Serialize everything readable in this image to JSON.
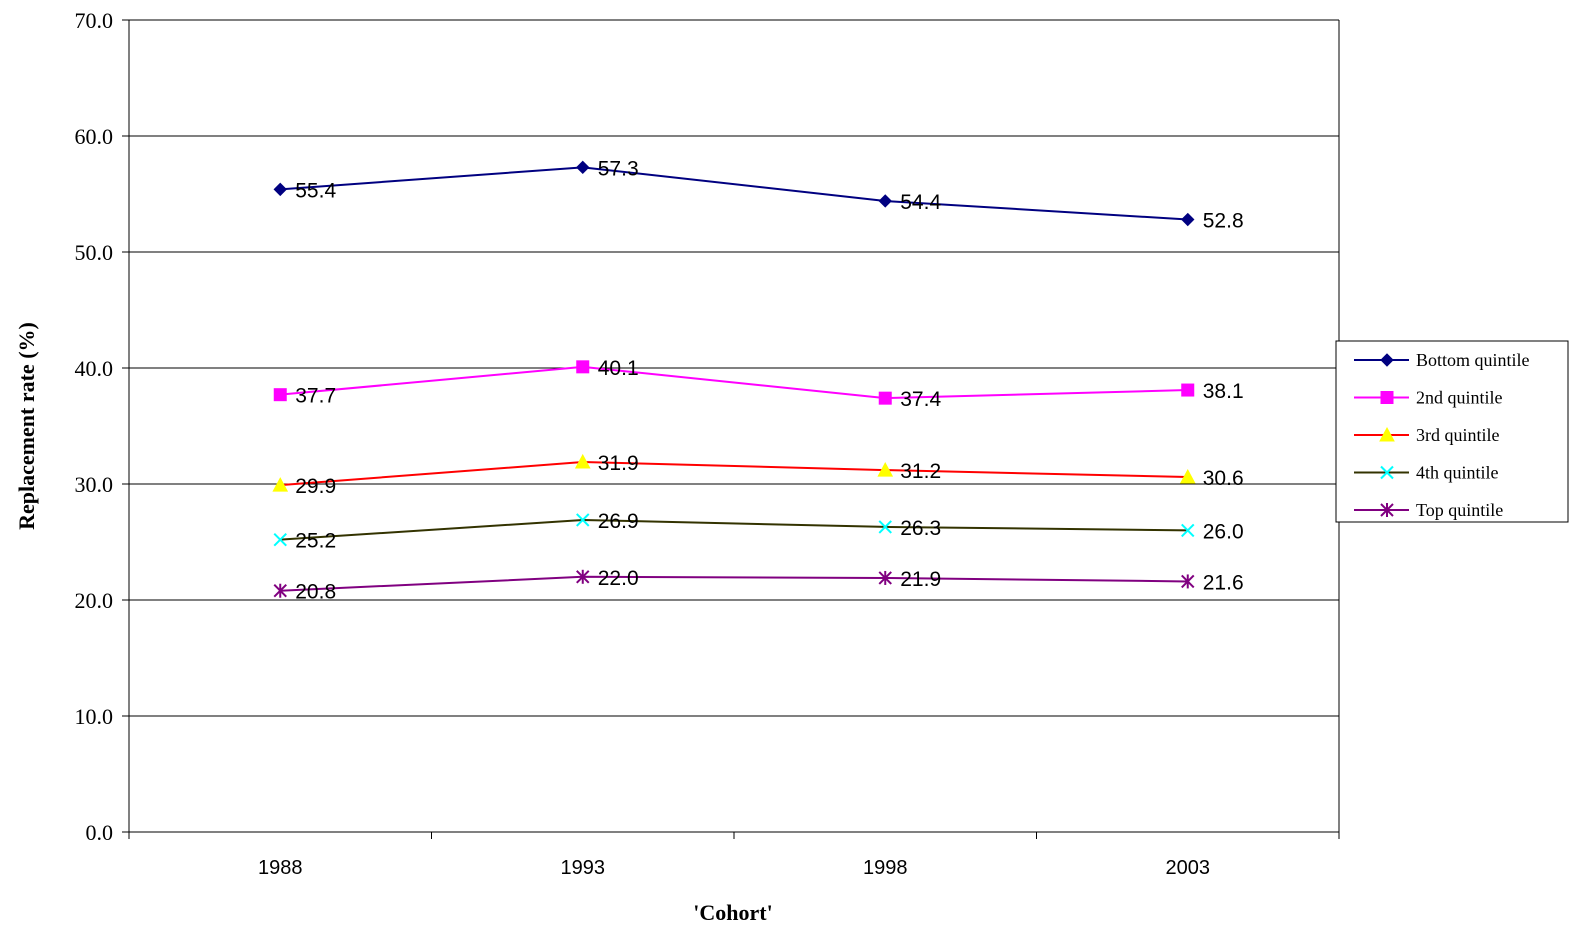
{
  "chart_data": {
    "type": "line",
    "title": "",
    "xlabel": "'Cohort'",
    "ylabel": "Replacement rate (%)",
    "categories": [
      "1988",
      "1993",
      "1998",
      "2003"
    ],
    "ylim": [
      0,
      70
    ],
    "yticks": [
      "0.0",
      "10.0",
      "20.0",
      "30.0",
      "40.0",
      "50.0",
      "60.0",
      "70.0"
    ],
    "grid": true,
    "legend_position": "right",
    "series": [
      {
        "name": "Bottom quintile",
        "values": [
          55.4,
          57.3,
          54.4,
          52.8
        ],
        "labels": [
          "55.4",
          "57.3",
          "54.4",
          "52.8"
        ],
        "color": "#000080",
        "marker": "diamond"
      },
      {
        "name": "2nd quintile",
        "values": [
          37.7,
          40.1,
          37.4,
          38.1
        ],
        "labels": [
          "37.7",
          "40.1",
          "37.4",
          "38.1"
        ],
        "color": "#FF00FF",
        "marker": "square"
      },
      {
        "name": "3rd quintile",
        "values": [
          29.9,
          31.9,
          31.2,
          30.6
        ],
        "labels": [
          "29.9",
          "31.9",
          "31.2",
          "30.6"
        ],
        "color": "#FF0000",
        "marker_color": "#FFFF00",
        "marker": "triangle"
      },
      {
        "name": "4th quintile",
        "values": [
          25.2,
          26.9,
          26.3,
          26.0
        ],
        "labels": [
          "25.2",
          "26.9",
          "26.3",
          "26.0"
        ],
        "color": "#333300",
        "marker_color": "#00FFFF",
        "marker": "x"
      },
      {
        "name": "Top quintile",
        "values": [
          20.8,
          22.0,
          21.9,
          21.6
        ],
        "labels": [
          "20.8",
          "22.0",
          "21.9",
          "21.6"
        ],
        "color": "#800080",
        "marker": "star"
      }
    ]
  }
}
